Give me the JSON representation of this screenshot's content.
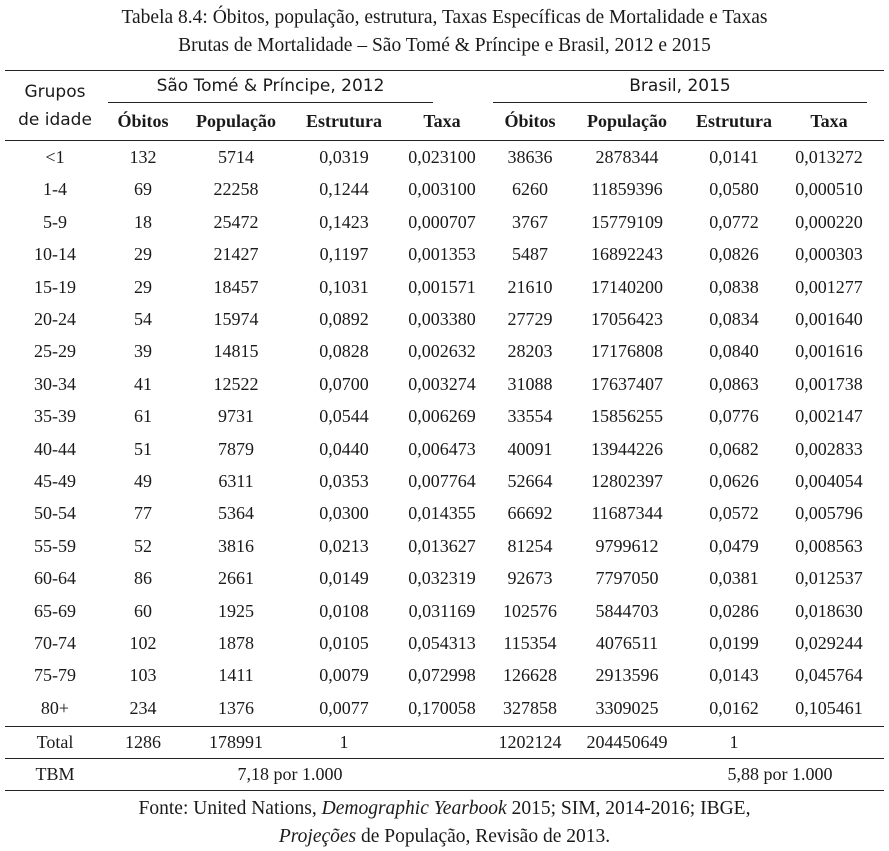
{
  "caption": {
    "line1": "Tabela 8.4: Óbitos, população, estrutura, Taxas Específicas de Mortalidade e Taxas",
    "line2": "Brutas de Mortalidade – São Tomé & Príncipe e Brasil, 2012 e 2015"
  },
  "header": {
    "group_line1": "Grupos",
    "group_line2": "de idade",
    "stp": "São Tomé & Príncipe, 2012",
    "brasil": "Brasil, 2015",
    "columns": [
      "Óbitos",
      "População",
      "Estrutura",
      "Taxa",
      "Óbitos",
      "População",
      "Estrutura",
      "Taxa"
    ]
  },
  "rows": [
    [
      "<1",
      "132",
      "5714",
      "0,0319",
      "0,023100",
      "38636",
      "2878344",
      "0,0141",
      "0,013272"
    ],
    [
      "1-4",
      "69",
      "22258",
      "0,1244",
      "0,003100",
      "6260",
      "11859396",
      "0,0580",
      "0,000510"
    ],
    [
      "5-9",
      "18",
      "25472",
      "0,1423",
      "0,000707",
      "3767",
      "15779109",
      "0,0772",
      "0,000220"
    ],
    [
      "10-14",
      "29",
      "21427",
      "0,1197",
      "0,001353",
      "5487",
      "16892243",
      "0,0826",
      "0,000303"
    ],
    [
      "15-19",
      "29",
      "18457",
      "0,1031",
      "0,001571",
      "21610",
      "17140200",
      "0,0838",
      "0,001277"
    ],
    [
      "20-24",
      "54",
      "15974",
      "0,0892",
      "0,003380",
      "27729",
      "17056423",
      "0,0834",
      "0,001640"
    ],
    [
      "25-29",
      "39",
      "14815",
      "0,0828",
      "0,002632",
      "28203",
      "17176808",
      "0,0840",
      "0,001616"
    ],
    [
      "30-34",
      "41",
      "12522",
      "0,0700",
      "0,003274",
      "31088",
      "17637407",
      "0,0863",
      "0,001738"
    ],
    [
      "35-39",
      "61",
      "9731",
      "0,0544",
      "0,006269",
      "33554",
      "15856255",
      "0,0776",
      "0,002147"
    ],
    [
      "40-44",
      "51",
      "7879",
      "0,0440",
      "0,006473",
      "40091",
      "13944226",
      "0,0682",
      "0,002833"
    ],
    [
      "45-49",
      "49",
      "6311",
      "0,0353",
      "0,007764",
      "52664",
      "12802397",
      "0,0626",
      "0,004054"
    ],
    [
      "50-54",
      "77",
      "5364",
      "0,0300",
      "0,014355",
      "66692",
      "11687344",
      "0,0572",
      "0,005796"
    ],
    [
      "55-59",
      "52",
      "3816",
      "0,0213",
      "0,013627",
      "81254",
      "9799612",
      "0,0479",
      "0,008563"
    ],
    [
      "60-64",
      "86",
      "2661",
      "0,0149",
      "0,032319",
      "92673",
      "7797050",
      "0,0381",
      "0,012537"
    ],
    [
      "65-69",
      "60",
      "1925",
      "0,0108",
      "0,031169",
      "102576",
      "5844703",
      "0,0286",
      "0,018630"
    ],
    [
      "70-74",
      "102",
      "1878",
      "0,0105",
      "0,054313",
      "115354",
      "4076511",
      "0,0199",
      "0,029244"
    ],
    [
      "75-79",
      "103",
      "1411",
      "0,0079",
      "0,072998",
      "126628",
      "2913596",
      "0,0143",
      "0,045764"
    ],
    [
      "80+",
      "234",
      "1376",
      "0,0077",
      "0,170058",
      "327858",
      "3309025",
      "0,0162",
      "0,105461"
    ]
  ],
  "total": [
    "Total",
    "1286",
    "178991",
    "1",
    "",
    "1202124",
    "204450649",
    "1",
    ""
  ],
  "tbm": {
    "label": "TBM",
    "stp": "7,18 por 1.000",
    "brasil": "5,88 por 1.000"
  },
  "source": {
    "prefix": "Fonte: United Nations, ",
    "italic1": "Demographic Yearbook",
    "middle": " 2015; SIM, 2014-2016; IBGE,",
    "italic2": "Projeções",
    "suffix": " de População, Revisão de 2013."
  }
}
